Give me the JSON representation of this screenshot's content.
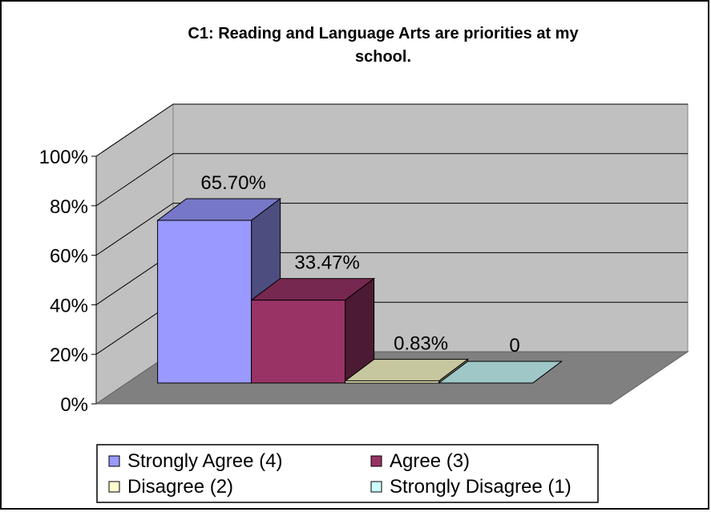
{
  "chart_data": {
    "type": "bar",
    "title_lines": [
      "C1: Reading and Language Arts are priorities at my",
      "school."
    ],
    "categories": [
      "Strongly Agree (4)",
      "Agree (3)",
      "Disagree (2)",
      "Strongly Disagree (1)"
    ],
    "values": [
      65.7,
      33.47,
      0.83,
      0
    ],
    "data_labels": [
      "65.70%",
      "33.47%",
      "0.83%",
      "0"
    ],
    "colors": [
      "#9999FF",
      "#993366",
      "#FFFFCC",
      "#CCFFFF"
    ],
    "y_ticks": [
      "0%",
      "20%",
      "40%",
      "60%",
      "80%",
      "100%"
    ],
    "ylim": [
      0,
      100
    ],
    "grid": true,
    "legend_position": "bottom",
    "style": "3d-column"
  }
}
